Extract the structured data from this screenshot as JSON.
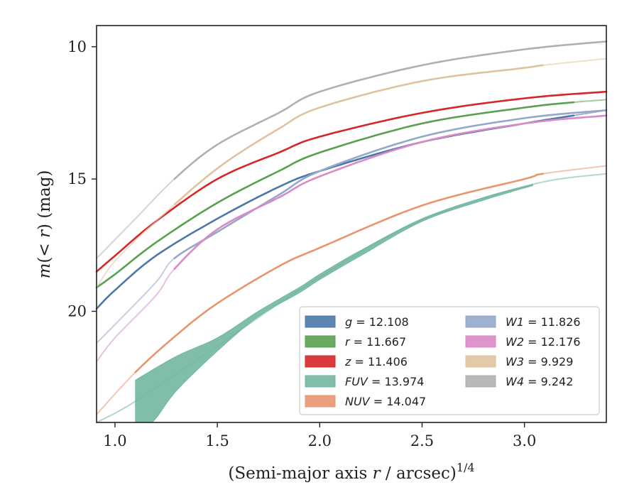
{
  "chart_data": {
    "type": "line",
    "xlabel": "(Semi-major axis r / arcsec)",
    "xlabel_var": "r",
    "xlabel_sup": "1/4",
    "ylabel": "m(< r) (mag)",
    "xlim": [
      0.91,
      3.4
    ],
    "ylim": [
      24.2,
      9.2
    ],
    "y_inverted": true,
    "xticks": [
      1.0,
      1.5,
      2.0,
      2.5,
      3.0
    ],
    "xtick_labels": [
      "1.0",
      "1.5",
      "2.0",
      "2.5",
      "3.0"
    ],
    "yticks": [
      10,
      15,
      20
    ],
    "ytick_labels": [
      "10",
      "15",
      "20"
    ],
    "legend_position": "lower-right",
    "legend_columns": 2,
    "series": [
      {
        "name": "g = 12.108",
        "band": "g",
        "mag": "12.108",
        "color": "#4c78a8",
        "solid_from": 0.91,
        "solid_to": 3.24,
        "points": [
          [
            0.91,
            19.9
          ],
          [
            1.0,
            19.2
          ],
          [
            1.2,
            17.9
          ],
          [
            1.5,
            16.5
          ],
          [
            1.8,
            15.3
          ],
          [
            2.0,
            14.7
          ],
          [
            2.5,
            13.6
          ],
          [
            3.0,
            12.9
          ],
          [
            3.24,
            12.6
          ],
          [
            3.4,
            12.4
          ]
        ]
      },
      {
        "name": "r = 11.667",
        "band": "r",
        "mag": "11.667",
        "color": "#59a14f",
        "solid_from": 0.91,
        "solid_to": 3.24,
        "points": [
          [
            0.91,
            19.1
          ],
          [
            1.0,
            18.6
          ],
          [
            1.2,
            17.4
          ],
          [
            1.5,
            15.9
          ],
          [
            1.8,
            14.7
          ],
          [
            2.0,
            14.0
          ],
          [
            2.5,
            12.9
          ],
          [
            3.0,
            12.3
          ],
          [
            3.24,
            12.1
          ],
          [
            3.4,
            12.0
          ]
        ]
      },
      {
        "name": "z = 11.406",
        "band": "z",
        "mag": "11.406",
        "color": "#d62728",
        "solid_from": 0.91,
        "solid_to": 3.4,
        "points": [
          [
            0.91,
            18.5
          ],
          [
            1.0,
            17.9
          ],
          [
            1.2,
            16.6
          ],
          [
            1.5,
            15.0
          ],
          [
            1.8,
            14.0
          ],
          [
            2.0,
            13.4
          ],
          [
            2.5,
            12.5
          ],
          [
            3.0,
            11.95
          ],
          [
            3.4,
            11.7
          ]
        ]
      },
      {
        "name": "FUV = 13.974",
        "band": "FUV",
        "mag": "13.974",
        "color": "#72b7a1",
        "band_fill": true,
        "solid_from": 1.1,
        "solid_to": 3.04,
        "upper": [
          [
            1.1,
            22.6
          ],
          [
            1.3,
            21.7
          ],
          [
            1.5,
            21.0
          ],
          [
            1.7,
            20.0
          ],
          [
            1.9,
            19.1
          ],
          [
            2.0,
            18.6
          ],
          [
            2.2,
            17.7
          ],
          [
            2.5,
            16.5
          ],
          [
            2.8,
            15.7
          ],
          [
            3.04,
            15.2
          ]
        ],
        "lower": [
          [
            1.1,
            24.2
          ],
          [
            1.18,
            24.2
          ],
          [
            1.3,
            23.0
          ],
          [
            1.5,
            21.5
          ],
          [
            1.7,
            20.2
          ],
          [
            1.9,
            19.3
          ],
          [
            2.0,
            18.8
          ],
          [
            2.2,
            17.9
          ],
          [
            2.5,
            16.6
          ],
          [
            2.8,
            15.8
          ],
          [
            3.04,
            15.25
          ]
        ],
        "points": [
          [
            0.91,
            24.2
          ],
          [
            1.1,
            23.4
          ],
          [
            1.5,
            21.3
          ],
          [
            2.0,
            18.7
          ],
          [
            2.5,
            16.55
          ],
          [
            3.04,
            15.2
          ],
          [
            3.4,
            14.8
          ]
        ]
      },
      {
        "name": "NUV = 14.047",
        "band": "NUV",
        "mag": "14.047",
        "color": "#e8956f",
        "solid_from": 1.1,
        "solid_to": 3.09,
        "points": [
          [
            0.91,
            23.9
          ],
          [
            1.1,
            22.3
          ],
          [
            1.3,
            20.9
          ],
          [
            1.5,
            19.7
          ],
          [
            1.8,
            18.3
          ],
          [
            2.0,
            17.6
          ],
          [
            2.5,
            16.0
          ],
          [
            3.0,
            15.0
          ],
          [
            3.09,
            14.8
          ],
          [
            3.4,
            14.5
          ]
        ]
      },
      {
        "name": "W1 = 11.826",
        "band": "W1",
        "mag": "11.826",
        "color": "#94a8cc",
        "solid_from": 1.29,
        "solid_to": 3.4,
        "points": [
          [
            0.91,
            21.2
          ],
          [
            1.0,
            20.5
          ],
          [
            1.2,
            18.9
          ],
          [
            1.29,
            18.0
          ],
          [
            1.5,
            17.0
          ],
          [
            1.8,
            15.6
          ],
          [
            2.0,
            14.7
          ],
          [
            2.5,
            13.4
          ],
          [
            3.0,
            12.7
          ],
          [
            3.4,
            12.4
          ]
        ]
      },
      {
        "name": "W2 = 12.176",
        "band": "W2",
        "mag": "12.176",
        "color": "#d98ac7",
        "solid_from": 1.29,
        "solid_to": 3.4,
        "points": [
          [
            0.91,
            21.9
          ],
          [
            1.0,
            21.0
          ],
          [
            1.2,
            19.4
          ],
          [
            1.29,
            18.4
          ],
          [
            1.5,
            16.9
          ],
          [
            1.8,
            15.7
          ],
          [
            2.0,
            14.9
          ],
          [
            2.5,
            13.6
          ],
          [
            3.0,
            12.9
          ],
          [
            3.4,
            12.6
          ]
        ]
      },
      {
        "name": "W3 = 9.929",
        "band": "W3",
        "mag": "9.929",
        "color": "#dfc3a0",
        "solid_from": 1.29,
        "solid_to": 3.09,
        "points": [
          [
            0.91,
            19.1
          ],
          [
            1.0,
            18.1
          ],
          [
            1.2,
            16.6
          ],
          [
            1.5,
            14.6
          ],
          [
            1.8,
            13.1
          ],
          [
            2.0,
            12.3
          ],
          [
            2.5,
            11.3
          ],
          [
            3.0,
            10.8
          ],
          [
            3.09,
            10.7
          ],
          [
            3.4,
            10.45
          ]
        ]
      },
      {
        "name": "W4 = 9.242",
        "band": "W4",
        "mag": "9.242",
        "color": "#b0b0b0",
        "solid_from": 1.29,
        "solid_to": 3.4,
        "points": [
          [
            0.91,
            18.0
          ],
          [
            1.1,
            16.5
          ],
          [
            1.29,
            15.0
          ],
          [
            1.5,
            13.7
          ],
          [
            1.8,
            12.5
          ],
          [
            2.0,
            11.7
          ],
          [
            2.5,
            10.7
          ],
          [
            3.0,
            10.1
          ],
          [
            3.4,
            9.8
          ]
        ]
      }
    ]
  }
}
